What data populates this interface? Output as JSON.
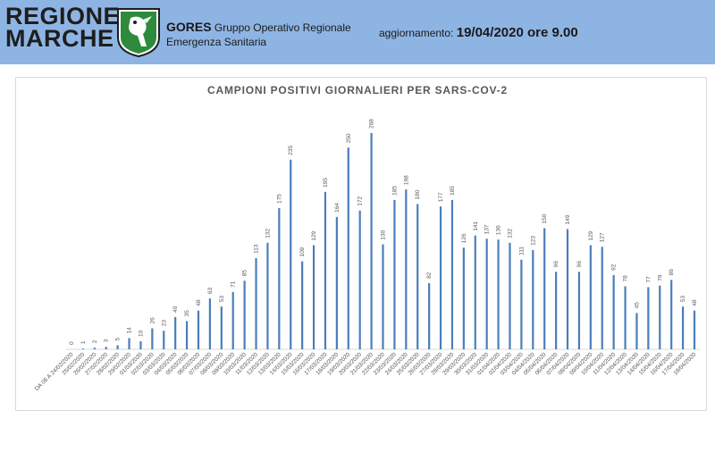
{
  "header": {
    "logo_line1": "REGIONE",
    "logo_line2": "MARCHE",
    "org_short": "GORES",
    "org_line1": "Gruppo Operativo Regionale",
    "org_line2": "Emergenza Sanitaria",
    "update_label": "aggiornamento:",
    "update_value": "19/04/2020 ore 9.00",
    "background_color": "#8eb4e3"
  },
  "chart_data": {
    "type": "bar",
    "title": "CAMPIONI POSITIVI GIORNALIERI PER SARS-COV-2",
    "bar_color": "#4a7ebb",
    "grid": false,
    "legend": "none",
    "categories": [
      "DA 06 A 24/02/2020",
      "25/02/2020",
      "26/02/2020",
      "27/02/2020",
      "28/02/2020",
      "29/02/2020",
      "01/03/2020",
      "02/03/2020",
      "03/03/2020",
      "04/03/2020",
      "05/03/2020",
      "06/03/2020",
      "07/03/2020",
      "08/03/2020",
      "09/03/2020",
      "10/03/2020",
      "11/03/2020",
      "12/03/2020",
      "13/03/2020",
      "14/03/2020",
      "15/03/2020",
      "16/03/2020",
      "17/03/2020",
      "18/03/2020",
      "19/03/2020",
      "20/03/2020",
      "21/03/2020",
      "22/03/2020",
      "23/03/2020",
      "24/03/2020",
      "25/03/2020",
      "26/03/2020",
      "27/03/2020",
      "28/03/2020",
      "29/03/2020",
      "30/03/2020",
      "31/03/2020",
      "01/04/2020",
      "02/04/2020",
      "03/04/2020",
      "04/04/2020",
      "05/04/2020",
      "06/04/2020",
      "07/04/2020",
      "08/04/2020",
      "09/04/2020",
      "10/04/2020",
      "11/04/2020",
      "12/04/2020",
      "13/04/2020",
      "14/04/2020",
      "15/04/2020",
      "16/04/2020",
      "17/04/2020",
      "18/04/2020"
    ],
    "values": [
      0,
      1,
      2,
      3,
      5,
      14,
      10,
      26,
      23,
      40,
      35,
      48,
      63,
      53,
      71,
      85,
      113,
      132,
      175,
      235,
      109,
      129,
      195,
      164,
      250,
      172,
      268,
      130,
      185,
      198,
      180,
      82,
      177,
      185,
      126,
      141,
      137,
      136,
      132,
      111,
      123,
      150,
      96,
      149,
      96,
      129,
      127,
      92,
      78,
      45,
      77,
      79,
      86,
      53,
      48
    ],
    "ylim": [
      0,
      300
    ]
  }
}
